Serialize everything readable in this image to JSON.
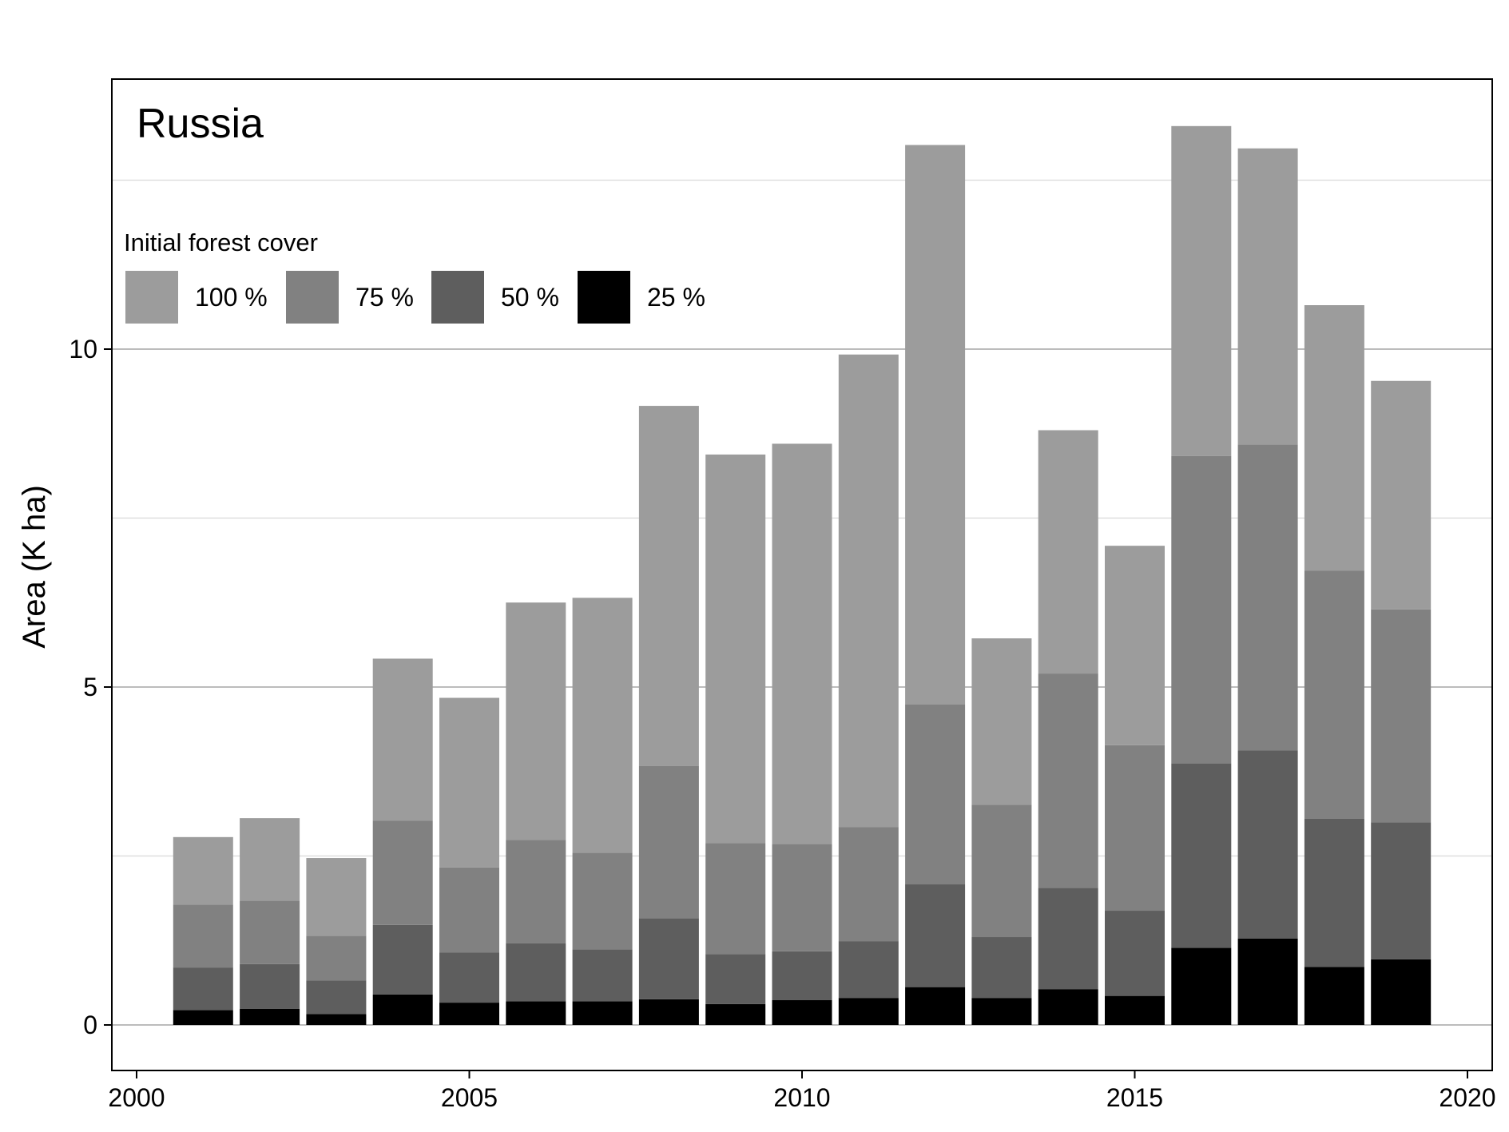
{
  "chart_data": {
    "type": "bar",
    "stacked": true,
    "title": "Russia",
    "ylabel": "Area (K ha)",
    "xlabel": "",
    "xlim": [
      2000,
      2020
    ],
    "ylim": [
      -0.65,
      13.0
    ],
    "x_ticks": [
      2000,
      2005,
      2010,
      2015,
      2020
    ],
    "y_ticks": [
      0,
      5,
      10
    ],
    "grid": {
      "major_y": [
        0,
        5,
        10
      ],
      "minor_y": [
        2.5,
        7.5,
        12.5
      ]
    },
    "legend": {
      "title": "Initial forest cover",
      "placement": "top-left",
      "entries": [
        "100 %",
        "75 %",
        "50 %",
        "25 %"
      ]
    },
    "x": [
      2001,
      2002,
      2003,
      2004,
      2005,
      2006,
      2007,
      2008,
      2009,
      2010,
      2011,
      2012,
      2013,
      2014,
      2015,
      2016,
      2017,
      2018,
      2019
    ],
    "series": [
      {
        "name": "25 %",
        "color": "#000000",
        "values": [
          0.22,
          0.24,
          0.16,
          0.45,
          0.33,
          0.35,
          0.35,
          0.38,
          0.31,
          0.37,
          0.4,
          0.56,
          0.4,
          0.53,
          0.43,
          1.14,
          1.28,
          0.86,
          0.97
        ]
      },
      {
        "name": "50 %",
        "color": "#5e5e5e",
        "values": [
          0.63,
          0.66,
          0.5,
          1.03,
          0.74,
          0.86,
          0.77,
          1.2,
          0.74,
          0.72,
          0.84,
          1.52,
          0.9,
          1.5,
          1.26,
          2.73,
          2.78,
          2.19,
          2.03
        ]
      },
      {
        "name": "75 %",
        "color": "#818181",
        "values": [
          0.93,
          0.94,
          0.66,
          1.54,
          1.26,
          1.53,
          1.43,
          2.25,
          1.64,
          1.59,
          1.69,
          2.66,
          1.96,
          3.17,
          2.45,
          4.55,
          4.53,
          3.67,
          3.15
        ]
      },
      {
        "name": "100 %",
        "color": "#9c9c9c",
        "values": [
          1.0,
          1.22,
          1.15,
          2.4,
          2.51,
          3.51,
          3.77,
          5.33,
          5.75,
          5.92,
          6.99,
          8.28,
          2.46,
          3.6,
          2.95,
          4.88,
          4.38,
          3.93,
          3.38
        ]
      }
    ]
  }
}
